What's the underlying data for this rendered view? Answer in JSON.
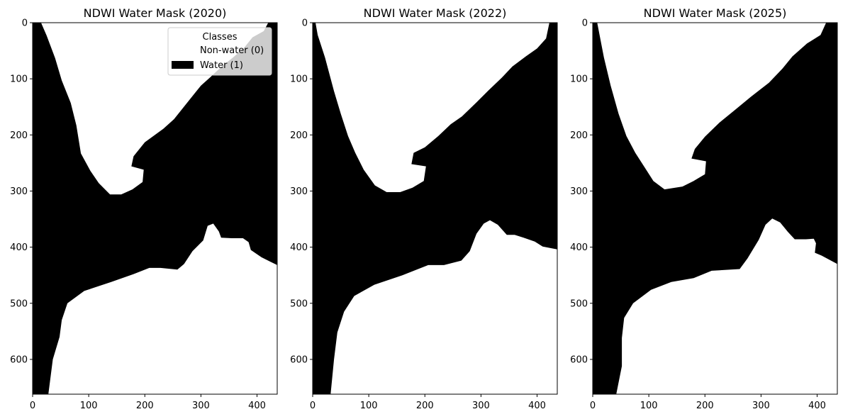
{
  "chart_data": [
    {
      "type": "heatmap",
      "title": "NDWI Water Mask (2020)",
      "xlabel": "",
      "ylabel": "",
      "xlim": [
        0,
        436
      ],
      "ylim": [
        662,
        0
      ],
      "x_ticks": [
        0,
        100,
        200,
        300,
        400
      ],
      "y_ticks": [
        0,
        100,
        200,
        300,
        400,
        500,
        600
      ],
      "classes": [
        {
          "label": "Non-water (0)",
          "value": 0,
          "color": "#ffffff"
        },
        {
          "label": "Water (1)",
          "value": 1,
          "color": "#000000"
        }
      ],
      "legend": {
        "title": "Classes",
        "placement": "top-right"
      },
      "water_regions": [
        {
          "name": "left-sea",
          "polygon": [
            [
              0,
              0
            ],
            [
              0,
              662
            ],
            [
              28,
              662
            ],
            [
              36,
              600
            ],
            [
              48,
              560
            ],
            [
              52,
              530
            ],
            [
              62,
              500
            ],
            [
              92,
              478
            ],
            [
              140,
              462
            ],
            [
              180,
              448
            ],
            [
              208,
              437
            ],
            [
              228,
              437
            ],
            [
              258,
              440
            ],
            [
              270,
              430
            ],
            [
              285,
              407
            ],
            [
              304,
              388
            ],
            [
              312,
              362
            ],
            [
              322,
              358
            ],
            [
              332,
              372
            ],
            [
              336,
              383
            ],
            [
              355,
              384
            ],
            [
              375,
              384
            ],
            [
              385,
              391
            ],
            [
              389,
              405
            ],
            [
              408,
              418
            ],
            [
              436,
              432
            ],
            [
              436,
              0
            ],
            [
              420,
              0
            ],
            [
              412,
              15
            ],
            [
              392,
              26
            ],
            [
              376,
              46
            ],
            [
              356,
              63
            ],
            [
              337,
              78
            ],
            [
              317,
              97
            ],
            [
              300,
              112
            ],
            [
              288,
              127
            ],
            [
              268,
              152
            ],
            [
              252,
              172
            ],
            [
              233,
              189
            ],
            [
              200,
              213
            ],
            [
              180,
              238
            ],
            [
              176,
              256
            ],
            [
              198,
              262
            ],
            [
              196,
              284
            ],
            [
              178,
              297
            ],
            [
              158,
              306
            ],
            [
              138,
              306
            ],
            [
              118,
              286
            ],
            [
              103,
              264
            ],
            [
              86,
              233
            ],
            [
              78,
              183
            ],
            [
              68,
              143
            ],
            [
              52,
              103
            ],
            [
              40,
              63
            ],
            [
              25,
              23
            ],
            [
              15,
              0
            ]
          ]
        }
      ]
    },
    {
      "type": "heatmap",
      "title": "NDWI Water Mask (2022)",
      "xlabel": "",
      "ylabel": "",
      "xlim": [
        0,
        436
      ],
      "ylim": [
        662,
        0
      ],
      "x_ticks": [
        0,
        100,
        200,
        300,
        400
      ],
      "y_ticks": [
        0,
        100,
        200,
        300,
        400,
        500,
        600
      ],
      "classes": [
        {
          "label": "Non-water (0)",
          "value": 0,
          "color": "#ffffff"
        },
        {
          "label": "Water (1)",
          "value": 1,
          "color": "#000000"
        }
      ],
      "water_regions": [
        {
          "name": "left-sea",
          "polygon": [
            [
              0,
              0
            ],
            [
              0,
              662
            ],
            [
              32,
              662
            ],
            [
              38,
              600
            ],
            [
              44,
              552
            ],
            [
              56,
              515
            ],
            [
              74,
              487
            ],
            [
              110,
              467
            ],
            [
              160,
              450
            ],
            [
              206,
              432
            ],
            [
              234,
              432
            ],
            [
              265,
              424
            ],
            [
              280,
              407
            ],
            [
              292,
              376
            ],
            [
              305,
              358
            ],
            [
              316,
              352
            ],
            [
              330,
              360
            ],
            [
              346,
              378
            ],
            [
              360,
              378
            ],
            [
              376,
              383
            ],
            [
              396,
              390
            ],
            [
              410,
              399
            ],
            [
              436,
              404
            ],
            [
              436,
              0
            ],
            [
              422,
              0
            ],
            [
              416,
              28
            ],
            [
              400,
              46
            ],
            [
              380,
              60
            ],
            [
              356,
              78
            ],
            [
              337,
              98
            ],
            [
              314,
              120
            ],
            [
              292,
              142
            ],
            [
              266,
              167
            ],
            [
              246,
              181
            ],
            [
              224,
              202
            ],
            [
              200,
              222
            ],
            [
              180,
              232
            ],
            [
              176,
              252
            ],
            [
              202,
              256
            ],
            [
              198,
              282
            ],
            [
              178,
              294
            ],
            [
              156,
              302
            ],
            [
              132,
              302
            ],
            [
              111,
              290
            ],
            [
              91,
              262
            ],
            [
              76,
              232
            ],
            [
              63,
              202
            ],
            [
              50,
              162
            ],
            [
              38,
              122
            ],
            [
              22,
              62
            ],
            [
              9,
              22
            ],
            [
              5,
              0
            ]
          ]
        }
      ]
    },
    {
      "type": "heatmap",
      "title": "NDWI Water Mask (2025)",
      "xlabel": "",
      "ylabel": "",
      "xlim": [
        0,
        436
      ],
      "ylim": [
        662,
        0
      ],
      "x_ticks": [
        0,
        100,
        200,
        300,
        400
      ],
      "y_ticks": [
        0,
        100,
        200,
        300,
        400,
        500,
        600
      ],
      "classes": [
        {
          "label": "Non-water (0)",
          "value": 0,
          "color": "#ffffff"
        },
        {
          "label": "Water (1)",
          "value": 1,
          "color": "#000000"
        }
      ],
      "water_regions": [
        {
          "name": "left-sea",
          "polygon": [
            [
              0,
              0
            ],
            [
              0,
              662
            ],
            [
              42,
              662
            ],
            [
              52,
              612
            ],
            [
              52,
              562
            ],
            [
              56,
              526
            ],
            [
              72,
              500
            ],
            [
              104,
              476
            ],
            [
              140,
              462
            ],
            [
              180,
              455
            ],
            [
              212,
              442
            ],
            [
              262,
              439
            ],
            [
              276,
              420
            ],
            [
              296,
              387
            ],
            [
              308,
              360
            ],
            [
              320,
              349
            ],
            [
              334,
              356
            ],
            [
              348,
              373
            ],
            [
              360,
              386
            ],
            [
              380,
              386
            ],
            [
              394,
              385
            ],
            [
              398,
              393
            ],
            [
              396,
              410
            ],
            [
              408,
              415
            ],
            [
              436,
              430
            ],
            [
              436,
              0
            ],
            [
              416,
              0
            ],
            [
              406,
              22
            ],
            [
              382,
              37
            ],
            [
              356,
              60
            ],
            [
              338,
              82
            ],
            [
              314,
              107
            ],
            [
              282,
              132
            ],
            [
              254,
              155
            ],
            [
              226,
              178
            ],
            [
              200,
              203
            ],
            [
              182,
              225
            ],
            [
              176,
              242
            ],
            [
              202,
              247
            ],
            [
              200,
              270
            ],
            [
              180,
              282
            ],
            [
              160,
              292
            ],
            [
              128,
              297
            ],
            [
              108,
              282
            ],
            [
              92,
              257
            ],
            [
              76,
              232
            ],
            [
              60,
              202
            ],
            [
              46,
              162
            ],
            [
              32,
              112
            ],
            [
              20,
              62
            ],
            [
              8,
              0
            ]
          ]
        }
      ]
    }
  ]
}
